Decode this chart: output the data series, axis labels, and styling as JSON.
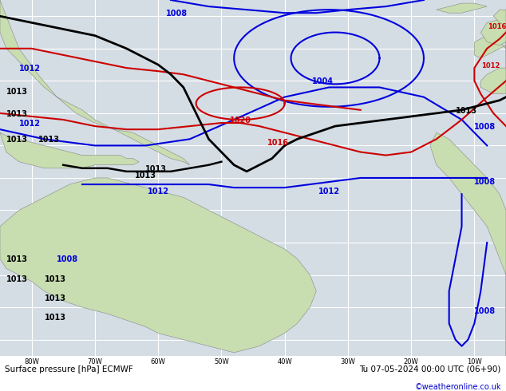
{
  "title_left": "Surface pressure [hPa] ECMWF",
  "title_right": "Tu 07-05-2024 00:00 UTC (06+90)",
  "credit": "©weatheronline.co.uk",
  "bg_ocean": "#d4dde4",
  "bg_land": "#c8ddb0",
  "grid_color": "#ffffff",
  "bottom_bar_color": "#d0d0d0",
  "xlim": [
    -85,
    -5
  ],
  "ylim": [
    -45,
    65
  ],
  "figsize": [
    6.34,
    4.9
  ],
  "dpi": 100,
  "blue": "#0000dd",
  "black": "#000000",
  "red": "#cc0000",
  "axis_ticks_x": [
    -80,
    -70,
    -60,
    -50,
    -40,
    -30,
    -20,
    -10
  ],
  "axis_ticks_x_labels": [
    "80W",
    "70W",
    "60W",
    "50W",
    "40W",
    "30W",
    "20W",
    "10W"
  ],
  "axis_ticks_y": [
    -40,
    -30,
    -20,
    -10,
    0,
    10,
    20,
    30,
    40,
    50,
    60
  ]
}
